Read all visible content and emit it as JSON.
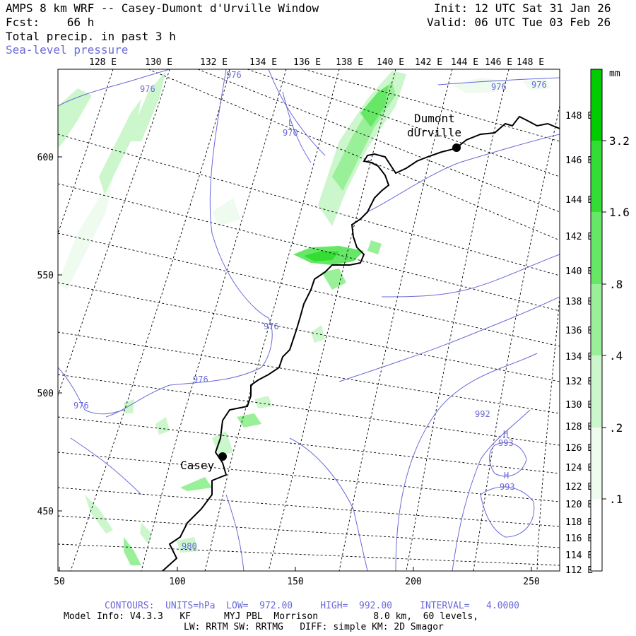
{
  "header": {
    "title": "AMPS 8 km WRF -- Casey-Dumont d'Urville Window",
    "fcst": "Fcst:    66 h",
    "field": "Total precip. in past 3 h",
    "overlay": "Sea-level pressure",
    "init": "Init: 12 UTC Sat 31 Jan 26",
    "valid": "Valid: 06 UTC Tue 03 Feb 26"
  },
  "top_lon_labels": [
    "128 E",
    "130 E",
    "132 E",
    "134 E",
    "136 E",
    "138 E",
    "140 E",
    "142 E",
    "144 E",
    "146 E",
    "148 E"
  ],
  "right_lon_labels": [
    "148 E",
    "146 E",
    "144 E",
    "142 E",
    "140 E",
    "138 E",
    "136 E",
    "134 E",
    "132 E",
    "130 E",
    "128 E",
    "126 E",
    "124 E",
    "122 E",
    "120 E",
    "118 E",
    "116 E",
    "114 E",
    "112 E"
  ],
  "y_axis_labels": [
    "600",
    "550",
    "500",
    "450"
  ],
  "x_axis_labels": [
    "50",
    "100",
    "150",
    "200",
    "250"
  ],
  "stations": [
    {
      "name_line1": "Dumont",
      "name_line2": "dUrville"
    },
    {
      "name_line1": "Casey",
      "name_line2": ""
    }
  ],
  "slp_labels": [
    "976",
    "976",
    "976",
    "976",
    "976",
    "976",
    "976",
    "980",
    "992",
    "993",
    "993"
  ],
  "slp_low_mark": "L",
  "slp_low_value": "970",
  "slp_high_mark": "H",
  "colorbar": {
    "unit": "mm",
    "labels": [
      "3.2",
      "1.6",
      ".8",
      ".4",
      ".2",
      ".1"
    ],
    "colors": [
      "#00cc00",
      "#33dd33",
      "#66e866",
      "#99f099",
      "#ccf6cc",
      "#eefbee"
    ]
  },
  "footer": {
    "contours_line": "CONTOURS:  UNITS=hPa  LOW=  972.00     HIGH=  992.00     INTERVAL=   4.0000",
    "model_line": "Model Info: V4.3.3   KF      MYJ PBL  Morrison          8.0 km,  60 levels,",
    "physics_line": "LW: RRTM SW: RRTMG   DIFF: simple KM: 2D Smagor"
  },
  "colors": {
    "coast": "#000000",
    "slp": "#6a6ad8",
    "grid": "#000000"
  }
}
